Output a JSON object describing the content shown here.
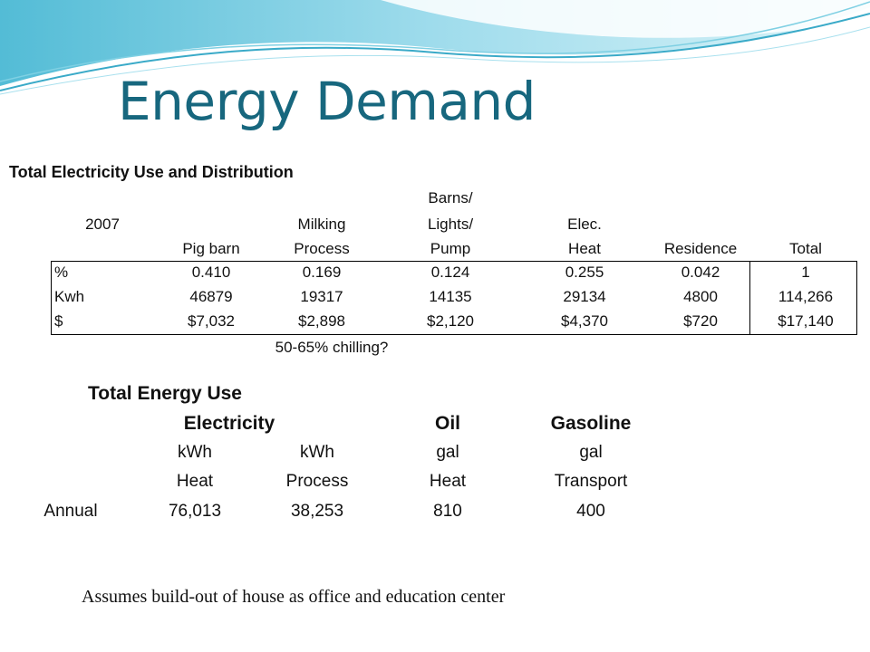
{
  "title": "Energy Demand",
  "table1": {
    "title": "Total Electricity Use and Distribution",
    "year": "2007",
    "headers": [
      [
        "",
        "Pig barn"
      ],
      [
        "Milking",
        "Process"
      ],
      [
        "Barns/",
        "Lights/",
        "Pump"
      ],
      [
        "Elec.",
        "Heat"
      ],
      [
        "",
        "Residence"
      ],
      [
        "",
        "Total"
      ]
    ],
    "header_lines": {
      "col1_l3": "Pig barn",
      "col2_l2": "Milking",
      "col2_l3": "Process",
      "col3_l1": "Barns/",
      "col3_l2": "Lights/",
      "col3_l3": "Pump",
      "col4_l2": "Elec.",
      "col4_l3": "Heat",
      "col5_l3": "Residence",
      "col6_l3": "Total"
    },
    "rows": [
      {
        "label": "%",
        "values": [
          "0.410",
          "0.169",
          "0.124",
          "0.255",
          "0.042",
          "1"
        ]
      },
      {
        "label": "Kwh",
        "values": [
          "46879",
          "19317",
          "14135",
          "29134",
          "4800",
          "114,266"
        ]
      },
      {
        "label": "$",
        "values": [
          "$7,032",
          "$2,898",
          "$2,120",
          "$4,370",
          "$720",
          "$17,140"
        ]
      }
    ],
    "footnote": "50-65% chilling?"
  },
  "table2": {
    "title": "Total Energy Use",
    "groups": {
      "electricity": "Electricity",
      "oil": "Oil",
      "gasoline": "Gasoline"
    },
    "units": [
      "kWh",
      "kWh",
      "gal",
      "gal"
    ],
    "uses": [
      "Heat",
      "Process",
      "Heat",
      "Transport"
    ],
    "row": {
      "label": "Annual",
      "values": [
        "76,013",
        "38,253",
        "810",
        "400"
      ]
    }
  },
  "note": "Assumes build-out of house as office and education center",
  "colors": {
    "title": "#17677e",
    "wave_dark": "#4bb7d2",
    "wave_light": "#bfe8f2"
  }
}
